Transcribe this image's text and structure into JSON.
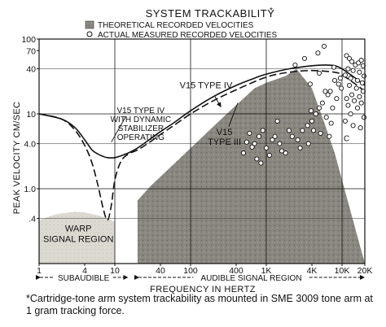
{
  "chart_data": {
    "type": "line",
    "title": "SYSTEM TRACKABILITY",
    "title_marker": "*",
    "xlabel": "FREQUENCY IN HERTZ",
    "ylabel": "PEAK VELOCITY CM/SEC",
    "x_scale": "log",
    "y_scale": "log",
    "xlim": [
      1,
      20000
    ],
    "ylim": [
      0.1,
      100
    ],
    "x_ticks": [
      {
        "value": 1,
        "label": "1"
      },
      {
        "value": 4,
        "label": "4"
      },
      {
        "value": 10,
        "label": "10"
      },
      {
        "value": 40,
        "label": "40"
      },
      {
        "value": 100,
        "label": "100"
      },
      {
        "value": 400,
        "label": "400"
      },
      {
        "value": 1000,
        "label": "1K"
      },
      {
        "value": 4000,
        "label": "4K"
      },
      {
        "value": 10000,
        "label": "10K"
      },
      {
        "value": 20000,
        "label": "20K"
      }
    ],
    "y_ticks": [
      {
        "value": 0.4,
        "label": ".4"
      },
      {
        "value": 1,
        "label": "1.0"
      },
      {
        "value": 4,
        "label": "4.0"
      },
      {
        "value": 10,
        "label": "10"
      },
      {
        "value": 40,
        "label": "40"
      },
      {
        "value": 70,
        "label": "70"
      },
      {
        "value": 100,
        "label": "100"
      }
    ],
    "grid": true,
    "legend_position": "top",
    "legend": [
      {
        "marker": "square",
        "label": "THEORETICAL RECORDED VELOCITIES"
      },
      {
        "marker": "circle",
        "label": "ACTUAL MEASURED RECORDED VELOCITIES"
      }
    ],
    "series": [
      {
        "name": "V15 TYPE IV WITH DYNAMIC STABILIZER OPERATING",
        "style": "solid",
        "x": [
          1,
          2,
          3,
          4,
          5,
          6,
          7,
          8,
          10,
          12,
          15,
          20,
          30,
          40,
          60,
          100,
          200,
          400,
          700,
          1000,
          2000,
          4000,
          6000,
          8000,
          10000,
          15000,
          20000
        ],
        "y": [
          10,
          8.5,
          6.5,
          4.5,
          3.3,
          2.9,
          2.7,
          2.6,
          2.6,
          2.75,
          3.0,
          3.5,
          4.7,
          5.8,
          7.6,
          11,
          17,
          24,
          30,
          34,
          40,
          44,
          45,
          44,
          40,
          30,
          24
        ]
      },
      {
        "name": "V15 TYPE III",
        "style": "dashed",
        "x": [
          1,
          2,
          3,
          4,
          5,
          6,
          7,
          8,
          9,
          10,
          12,
          15,
          20,
          30,
          40,
          60,
          100,
          200,
          400,
          1000,
          2000,
          4000,
          8000,
          10000,
          15000,
          20000
        ],
        "y": [
          10,
          8.5,
          6,
          3.8,
          2.2,
          1.1,
          0.55,
          0.38,
          0.6,
          1.3,
          2.3,
          2.9,
          3.3,
          4.3,
          5.3,
          7,
          10,
          15,
          21,
          31,
          36,
          38,
          36,
          33,
          25,
          20
        ]
      },
      {
        "name": "ACTUAL MEASURED RECORDED VELOCITIES",
        "style": "points",
        "x": [
          11500,
          12500,
          13500,
          15000,
          16500,
          18000,
          19000,
          12000,
          14000,
          17000,
          19500,
          11000,
          13000,
          16000,
          18500,
          12500,
          15500,
          19000,
          13500,
          17000,
          11500,
          14500,
          18000,
          12000,
          16000,
          13000,
          19500,
          11000,
          14000,
          17500,
          9500,
          8000,
          9000,
          9800,
          7000,
          6000,
          6500,
          5500,
          8500,
          7500,
          5000,
          4500,
          6200,
          4000,
          3500,
          7200,
          3000,
          5200,
          6800,
          2600,
          2200,
          4200,
          3600,
          2800,
          1800,
          2000,
          1500,
          1300,
          1600,
          1200,
          1000,
          900,
          1100,
          800,
          700,
          600,
          500,
          750,
          550,
          850,
          650,
          4800,
          5800,
          3200,
          2400,
          5000,
          7800,
          3800,
          1400,
          3900
        ],
        "y": [
          60,
          55,
          50,
          45,
          48,
          52,
          44,
          40,
          38,
          36,
          32,
          33,
          30,
          28,
          26,
          24,
          22,
          20,
          18,
          17,
          16,
          15,
          14,
          13,
          12,
          10,
          9,
          8,
          7,
          6.5,
          30,
          28,
          25,
          22,
          20,
          20,
          18,
          14,
          16,
          12,
          12,
          10,
          9,
          8,
          7,
          7.5,
          6,
          5.5,
          5,
          4.5,
          5,
          6,
          4,
          3.5,
          3,
          6,
          4,
          5,
          3.2,
          4.5,
          3.5,
          6,
          2.8,
          5,
          4,
          5.5,
          3,
          2.5,
          4.2,
          2.2,
          3.6,
          65,
          80,
          55,
          45,
          35,
          42,
          25,
          8,
          11
        ]
      }
    ],
    "regions": [
      {
        "name": "THEORETICAL RECORDED VELOCITIES",
        "label": "",
        "x": [
          20,
          20,
          30,
          300,
          700,
          1000,
          1800,
          2500,
          4000,
          6000,
          8000,
          20000
        ],
        "y": [
          0.1,
          0.7,
          1.1,
          10,
          22,
          26,
          32,
          40,
          22,
          7,
          3,
          0.1
        ]
      },
      {
        "name": "WARP SIGNAL REGION",
        "label": "WARP SIGNAL REGION",
        "x": [
          1,
          1,
          1.5,
          2,
          3,
          4,
          6,
          8,
          10,
          10
        ],
        "y": [
          0.1,
          0.38,
          0.44,
          0.47,
          0.49,
          0.48,
          0.44,
          0.4,
          0.36,
          0.1
        ]
      }
    ],
    "annotations": [
      {
        "text": "V15 TYPE IV",
        "x": 160,
        "y": 22
      },
      {
        "text": "V15 TYPE IV WITH DYNAMIC STABILIZER OPERATING",
        "x": 22,
        "y": 6
      },
      {
        "text": "V15 TYPE III",
        "x": 280,
        "y": 4.5
      },
      {
        "text": "C",
        "x": 11500,
        "y": 4.3
      }
    ],
    "bands": [
      {
        "label": "SUBAUDIBLE",
        "from": 1,
        "to": 15
      },
      {
        "label": "AUDIBLE SIGNAL REGION",
        "from": 20,
        "to": 20000
      }
    ]
  },
  "footnote": "*Cartridge-tone arm system trackability as mounted in SME 3009 tone arm at 1 gram tracking force."
}
